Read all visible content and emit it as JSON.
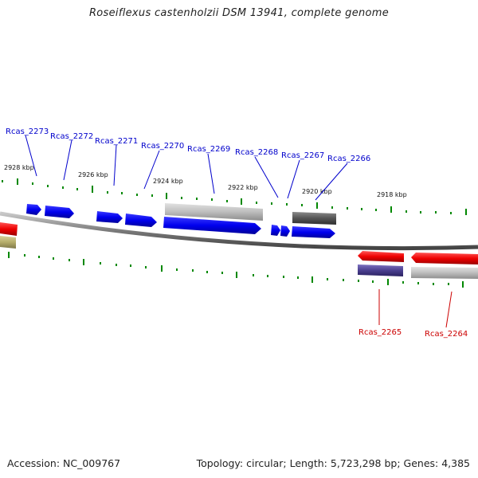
{
  "title": "Roseiflexus castenholzii DSM 13941, complete genome",
  "footer": {
    "accession": "Accession: NC_009767",
    "summary": "Topology: circular; Length: 5,723,298 bp; Genes: 4,385"
  },
  "positions": [
    "2928 kbp",
    "2926 kbp",
    "2924 kbp",
    "2922 kbp",
    "2920 kbp",
    "2918 kbp"
  ],
  "genes_forward_strand": [
    "Rcas_2273",
    "Rcas_2272",
    "Rcas_2271",
    "Rcas_2270",
    "Rcas_2269",
    "Rcas_2268",
    "Rcas_2267",
    "Rcas_2266"
  ],
  "genes_reverse_strand": [
    "Rcas_2265",
    "Rcas_2264"
  ],
  "colors": {
    "forward_gene": "#0000ee",
    "reverse_gene": "#ee0000",
    "gray_feature": "#b8b8b8",
    "dark_feature": "#555555",
    "purple_feature": "#4a3f8f",
    "olive_feature": "#b5ad6a",
    "tick": "#008800",
    "backbone": "#808080"
  }
}
